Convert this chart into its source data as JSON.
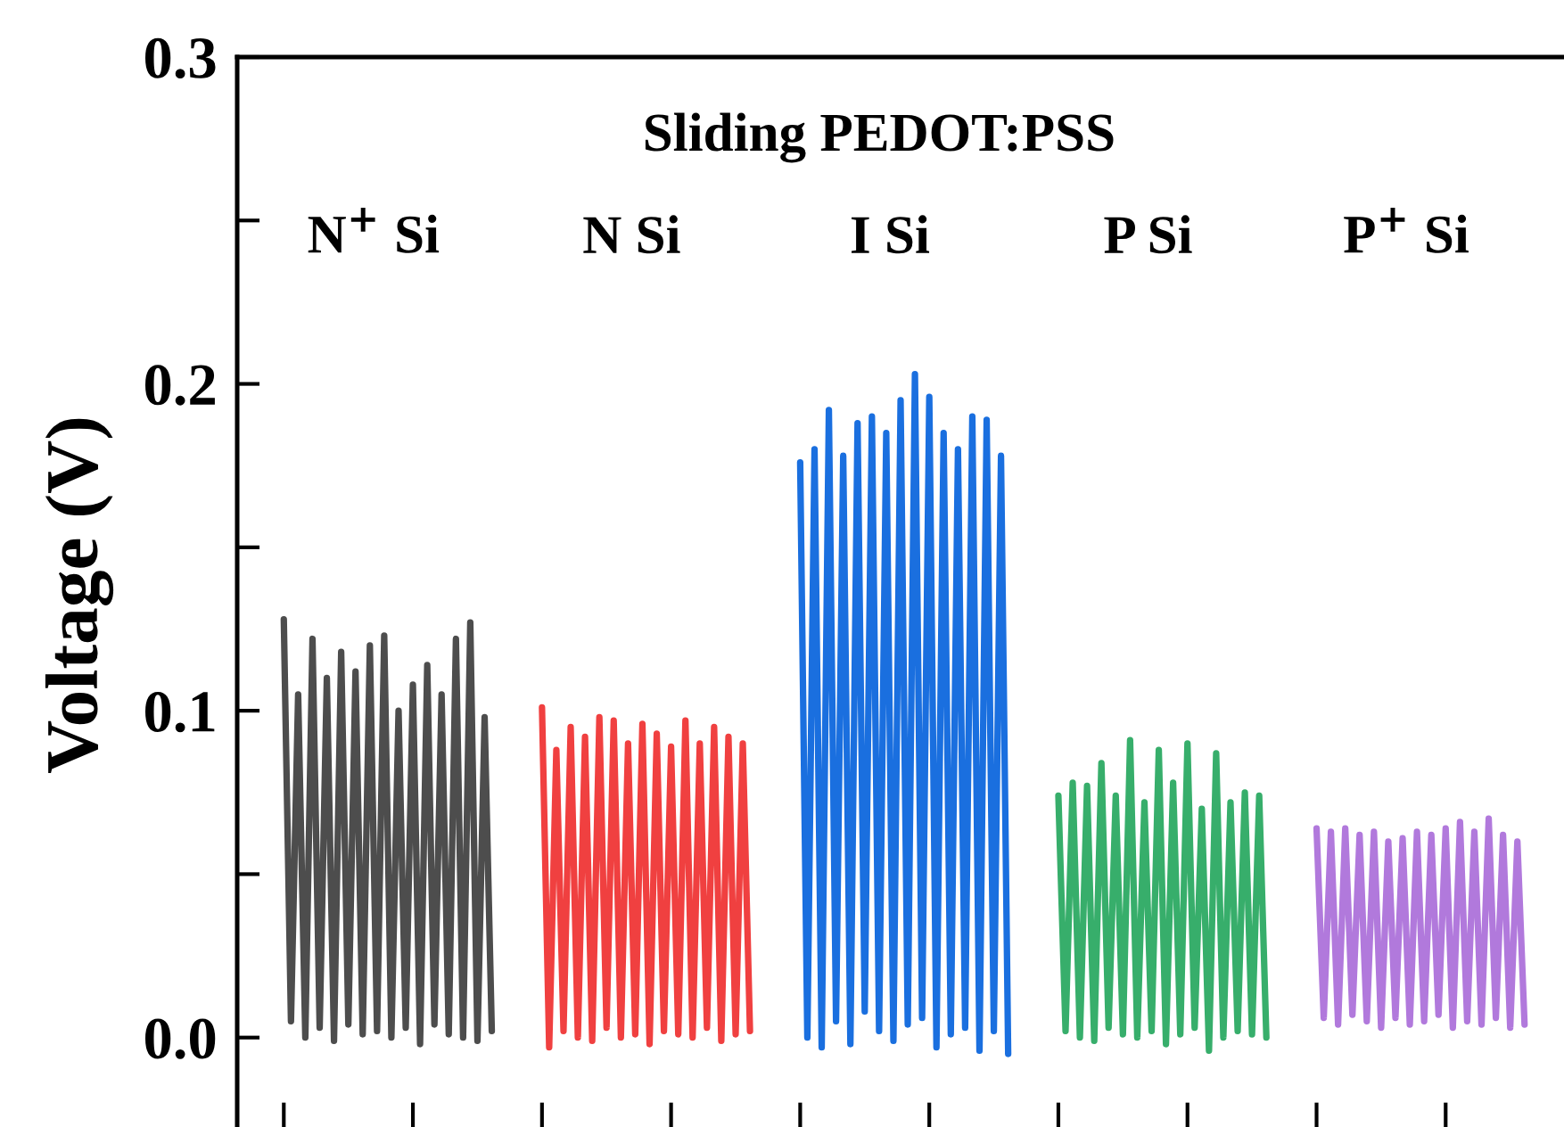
{
  "chart_data": {
    "type": "line",
    "title": "Sliding PEDOT:PSS",
    "ylabel": "Voltage (V)",
    "annotations": [
      "N$^{+}$ Si",
      "N Si",
      "I Si",
      "P Si",
      "P$^{+}$ Si"
    ],
    "categories": [
      null,
      null,
      null,
      null,
      null,
      null,
      null,
      null,
      null,
      null,
      null,
      null,
      null,
      null,
      null,
      null,
      null,
      null,
      null,
      null,
      null,
      null,
      null,
      null,
      null,
      null,
      null,
      null,
      null,
      null,
      null,
      null,
      null,
      null,
      null,
      null,
      null,
      null,
      null,
      null,
      null,
      null,
      null,
      null,
      null,
      null,
      null,
      null,
      null,
      null,
      null,
      null,
      null,
      null,
      null,
      null,
      null,
      null,
      null,
      null,
      null,
      null,
      null,
      null,
      null,
      null,
      null,
      null,
      null,
      null,
      null,
      null,
      null,
      null,
      null,
      null,
      null,
      null,
      null,
      null,
      null,
      null,
      null,
      null,
      null,
      null,
      null,
      null,
      null,
      null,
      null,
      null,
      null,
      null,
      null,
      null,
      null,
      null,
      null,
      null,
      null,
      null,
      null,
      null,
      null,
      null,
      null,
      null,
      null,
      null,
      null,
      null,
      null,
      null,
      null,
      null,
      null,
      null,
      null,
      null,
      null,
      null,
      null,
      null,
      null,
      null,
      null,
      null,
      null,
      null,
      null,
      null,
      null,
      null,
      null,
      null,
      null,
      null,
      null,
      null,
      null,
      null,
      null,
      null,
      null,
      null,
      null,
      null,
      null,
      null,
      null,
      null,
      null,
      null,
      null,
      null,
      null,
      null,
      null,
      null,
      null,
      null,
      null,
      null,
      null,
      null,
      null,
      null,
      null,
      null,
      null,
      null,
      null,
      null,
      null,
      null,
      null,
      null,
      null,
      null,
      null,
      null,
      null,
      null,
      null
    ],
    "series": [
      {
        "color": "#4d4d4d",
        "values": [
          null,
          null,
          null,
          null,
          null,
          null,
          0.128,
          0.005,
          0.105,
          0.0,
          0.122,
          0.003,
          0.11,
          -0.001,
          0.118,
          0.004,
          0.112,
          0.001,
          0.12,
          0.002,
          0.123,
          0.0,
          0.1,
          0.003,
          0.108,
          -0.002,
          0.114,
          0.004,
          0.105,
          0.001,
          0.122,
          0.0,
          0.127,
          -0.001,
          0.098,
          0.002,
          null,
          null,
          null,
          null,
          null,
          null,
          null,
          null,
          null,
          null,
          null,
          null,
          null,
          null,
          null,
          null,
          null,
          null,
          null,
          null,
          null,
          null,
          null,
          null,
          null,
          null,
          null,
          null,
          null,
          null,
          null,
          null,
          null,
          null,
          null,
          null,
          null,
          null,
          null,
          null,
          null,
          null,
          null,
          null,
          null,
          null,
          null,
          null,
          null,
          null,
          null,
          null,
          null,
          null,
          null,
          null,
          null,
          null,
          null,
          null,
          null,
          null,
          null,
          null,
          null,
          null,
          null,
          null,
          null,
          null,
          null,
          null,
          null,
          null,
          null,
          null,
          null,
          null,
          null,
          null,
          null,
          null,
          null,
          null,
          null,
          null,
          null,
          null,
          null,
          null,
          null,
          null,
          null,
          null,
          null,
          null,
          null,
          null,
          null,
          null,
          null,
          null,
          null,
          null,
          null,
          null,
          null,
          null,
          null,
          null,
          null,
          null,
          null,
          null,
          null,
          null,
          null,
          null,
          null,
          null,
          null,
          null,
          null,
          null,
          null,
          null,
          null,
          null,
          null,
          null,
          null,
          null,
          null,
          null,
          null,
          null,
          null,
          null,
          null,
          null,
          null,
          null,
          null,
          null,
          null,
          null,
          null,
          null,
          null
        ]
      },
      {
        "color": "#f04040",
        "values": [
          null,
          null,
          null,
          null,
          null,
          null,
          null,
          null,
          null,
          null,
          null,
          null,
          null,
          null,
          null,
          null,
          null,
          null,
          null,
          null,
          null,
          null,
          null,
          null,
          null,
          null,
          null,
          null,
          null,
          null,
          null,
          null,
          null,
          null,
          null,
          null,
          null,
          null,
          null,
          null,
          null,
          null,
          0.101,
          -0.003,
          0.088,
          0.002,
          0.095,
          0.0,
          0.092,
          -0.001,
          0.098,
          0.003,
          0.097,
          0.0,
          0.09,
          0.001,
          0.096,
          -0.002,
          0.093,
          0.002,
          0.089,
          0.001,
          0.097,
          0.0,
          0.09,
          0.003,
          0.095,
          -0.001,
          0.092,
          0.001,
          0.09,
          0.002,
          null,
          null,
          null,
          null,
          null,
          null,
          null,
          null,
          null,
          null,
          null,
          null,
          null,
          null,
          null,
          null,
          null,
          null,
          null,
          null,
          null,
          null,
          null,
          null,
          null,
          null,
          null,
          null,
          null,
          null,
          null,
          null,
          null,
          null,
          null,
          null,
          null,
          null,
          null,
          null,
          null,
          null,
          null,
          null,
          null,
          null,
          null,
          null,
          null,
          null,
          null,
          null,
          null,
          null,
          null,
          null,
          null,
          null,
          null,
          null,
          null,
          null,
          null,
          null,
          null,
          null,
          null,
          null,
          null,
          null,
          null,
          null,
          null,
          null,
          null,
          null,
          null,
          null,
          null,
          null,
          null,
          null,
          null,
          null,
          null,
          null,
          null,
          null,
          null,
          null,
          null,
          null,
          null,
          null,
          null,
          null,
          null,
          null,
          null,
          null,
          null,
          null,
          null,
          null,
          null,
          null,
          null,
          null,
          null,
          null,
          null,
          null,
          null
        ]
      },
      {
        "color": "#1a6fdf",
        "values": [
          null,
          null,
          null,
          null,
          null,
          null,
          null,
          null,
          null,
          null,
          null,
          null,
          null,
          null,
          null,
          null,
          null,
          null,
          null,
          null,
          null,
          null,
          null,
          null,
          null,
          null,
          null,
          null,
          null,
          null,
          null,
          null,
          null,
          null,
          null,
          null,
          null,
          null,
          null,
          null,
          null,
          null,
          null,
          null,
          null,
          null,
          null,
          null,
          null,
          null,
          null,
          null,
          null,
          null,
          null,
          null,
          null,
          null,
          null,
          null,
          null,
          null,
          null,
          null,
          null,
          null,
          null,
          null,
          null,
          null,
          null,
          null,
          null,
          null,
          null,
          null,
          null,
          null,
          0.176,
          0.0,
          0.18,
          -0.003,
          0.192,
          0.005,
          0.178,
          -0.002,
          0.188,
          0.008,
          0.19,
          0.002,
          0.185,
          -0.001,
          0.195,
          0.004,
          0.203,
          0.006,
          0.196,
          -0.003,
          0.185,
          0.001,
          0.18,
          0.003,
          0.19,
          -0.004,
          0.189,
          0.002,
          0.178,
          -0.005,
          null,
          null,
          null,
          null,
          null,
          null,
          null,
          null,
          null,
          null,
          null,
          null,
          null,
          null,
          null,
          null,
          null,
          null,
          null,
          null,
          null,
          null,
          null,
          null,
          null,
          null,
          null,
          null,
          null,
          null,
          null,
          null,
          null,
          null,
          null,
          null,
          null,
          null,
          null,
          null,
          null,
          null,
          null,
          null,
          null,
          null,
          null,
          null,
          null,
          null,
          null,
          null,
          null,
          null,
          null,
          null,
          null,
          null,
          null,
          null,
          null,
          null,
          null,
          null,
          null,
          null,
          null,
          null,
          null,
          null,
          null,
          null,
          null,
          null,
          null,
          null,
          null
        ]
      },
      {
        "color": "#37ae6b",
        "values": [
          null,
          null,
          null,
          null,
          null,
          null,
          null,
          null,
          null,
          null,
          null,
          null,
          null,
          null,
          null,
          null,
          null,
          null,
          null,
          null,
          null,
          null,
          null,
          null,
          null,
          null,
          null,
          null,
          null,
          null,
          null,
          null,
          null,
          null,
          null,
          null,
          null,
          null,
          null,
          null,
          null,
          null,
          null,
          null,
          null,
          null,
          null,
          null,
          null,
          null,
          null,
          null,
          null,
          null,
          null,
          null,
          null,
          null,
          null,
          null,
          null,
          null,
          null,
          null,
          null,
          null,
          null,
          null,
          null,
          null,
          null,
          null,
          null,
          null,
          null,
          null,
          null,
          null,
          null,
          null,
          null,
          null,
          null,
          null,
          null,
          null,
          null,
          null,
          null,
          null,
          null,
          null,
          null,
          null,
          null,
          null,
          null,
          null,
          null,
          null,
          null,
          null,
          null,
          null,
          null,
          null,
          null,
          null,
          null,
          null,
          null,
          null,
          null,
          null,
          0.074,
          0.002,
          0.078,
          0.0,
          0.077,
          -0.001,
          0.084,
          0.003,
          0.074,
          0.001,
          0.091,
          0.0,
          0.072,
          0.002,
          0.088,
          -0.002,
          0.078,
          0.001,
          0.09,
          0.003,
          0.07,
          -0.004,
          0.087,
          0.0,
          0.072,
          0.002,
          0.075,
          0.001,
          0.074,
          0.0,
          null,
          null,
          null,
          null,
          null,
          null,
          null,
          null,
          null,
          null,
          null,
          null,
          null,
          null,
          null,
          null,
          null,
          null,
          null,
          null,
          null,
          null,
          null,
          null,
          null,
          null,
          null,
          null,
          null,
          null,
          null,
          null,
          null,
          null,
          null,
          null,
          null,
          null,
          null,
          null,
          null
        ]
      },
      {
        "color": "#b179dc",
        "values": [
          null,
          null,
          null,
          null,
          null,
          null,
          null,
          null,
          null,
          null,
          null,
          null,
          null,
          null,
          null,
          null,
          null,
          null,
          null,
          null,
          null,
          null,
          null,
          null,
          null,
          null,
          null,
          null,
          null,
          null,
          null,
          null,
          null,
          null,
          null,
          null,
          null,
          null,
          null,
          null,
          null,
          null,
          null,
          null,
          null,
          null,
          null,
          null,
          null,
          null,
          null,
          null,
          null,
          null,
          null,
          null,
          null,
          null,
          null,
          null,
          null,
          null,
          null,
          null,
          null,
          null,
          null,
          null,
          null,
          null,
          null,
          null,
          null,
          null,
          null,
          null,
          null,
          null,
          null,
          null,
          null,
          null,
          null,
          null,
          null,
          null,
          null,
          null,
          null,
          null,
          null,
          null,
          null,
          null,
          null,
          null,
          null,
          null,
          null,
          null,
          null,
          null,
          null,
          null,
          null,
          null,
          null,
          null,
          null,
          null,
          null,
          null,
          null,
          null,
          null,
          null,
          null,
          null,
          null,
          null,
          null,
          null,
          null,
          null,
          null,
          null,
          null,
          null,
          null,
          null,
          null,
          null,
          null,
          null,
          null,
          null,
          null,
          null,
          null,
          null,
          null,
          null,
          null,
          null,
          null,
          null,
          null,
          null,
          null,
          null,
          0.064,
          0.006,
          0.063,
          0.004,
          0.064,
          0.007,
          0.062,
          0.005,
          0.063,
          0.003,
          0.06,
          0.006,
          0.061,
          0.004,
          0.063,
          0.005,
          0.062,
          0.007,
          0.064,
          0.003,
          0.066,
          0.005,
          0.063,
          0.004,
          0.067,
          0.006,
          0.062,
          0.003,
          0.06,
          0.004,
          null,
          null,
          null,
          null,
          null
        ]
      }
    ],
    "ylim": [
      -0.029,
      0.3
    ],
    "yticks": [
      {
        "value": 0.0,
        "label": "0.0"
      },
      {
        "value": 0.05,
        "label": null
      },
      0.1,
      {
        "value": 0.15,
        "label": null
      },
      0.2,
      {
        "value": 0.25,
        "label": null
      },
      0.3
    ],
    "marker": "none",
    "line_style": "solid",
    "grid": false,
    "legend": false
  }
}
